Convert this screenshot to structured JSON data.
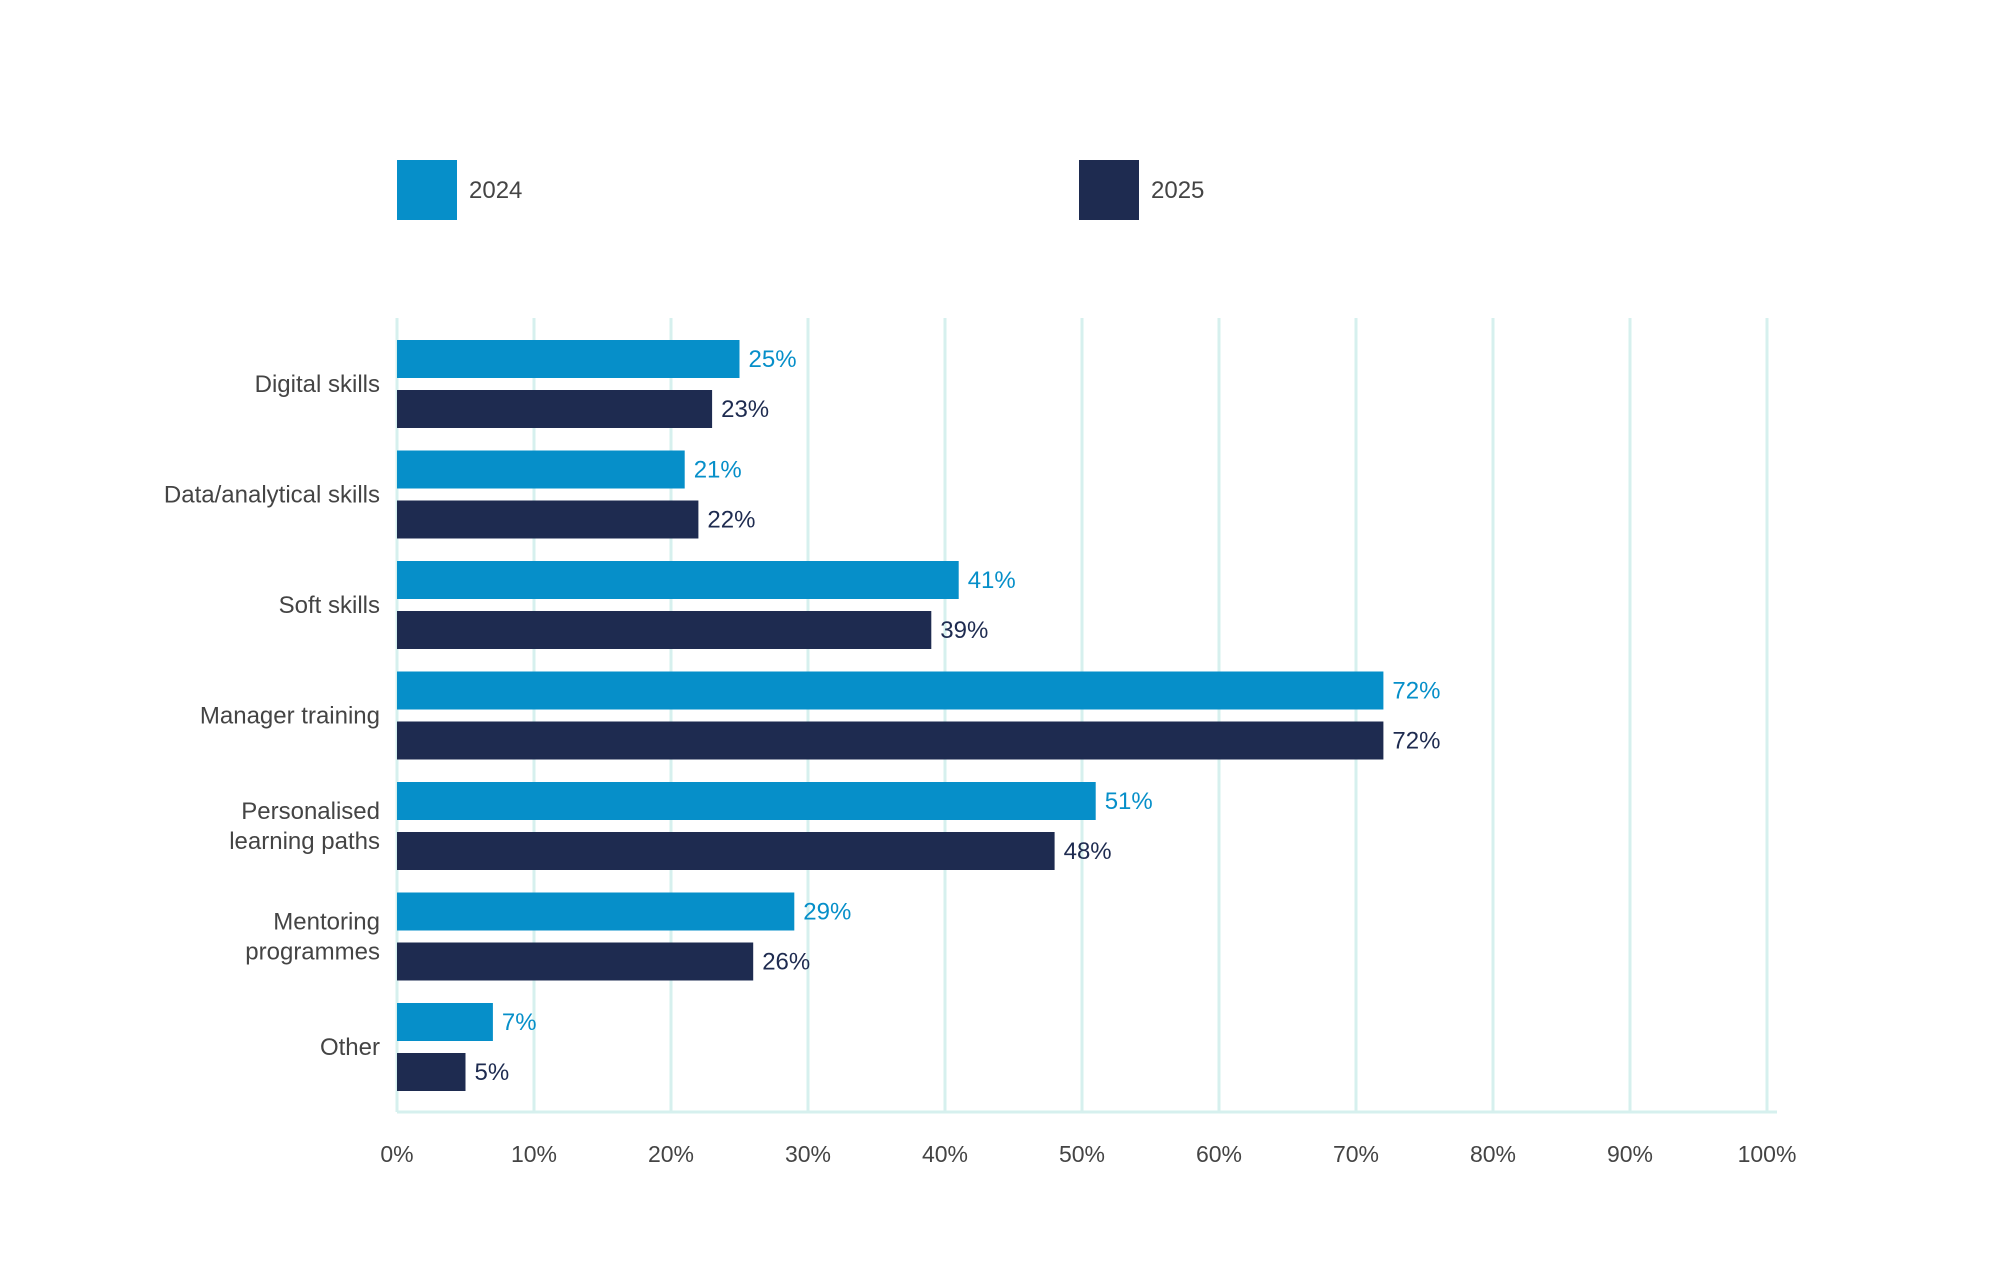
{
  "chart_data": {
    "type": "bar",
    "orientation": "horizontal",
    "categories": [
      [
        "Digital skills"
      ],
      [
        "Data/analytical skills"
      ],
      [
        "Soft skills"
      ],
      [
        "Manager training"
      ],
      [
        "Personalised",
        "learning paths"
      ],
      [
        "Mentoring",
        "programmes"
      ],
      [
        "Other"
      ]
    ],
    "series": [
      {
        "name": "2024",
        "color": "#068fc9",
        "values": [
          25,
          21,
          41,
          72,
          51,
          29,
          7
        ],
        "labels": [
          "25%",
          "21%",
          "41%",
          "72%",
          "51%",
          "29%",
          "7%"
        ]
      },
      {
        "name": "2025",
        "color": "#1e2b50",
        "values": [
          23,
          22,
          39,
          72,
          48,
          26,
          5
        ],
        "labels": [
          "23%",
          "22%",
          "39%",
          "72%",
          "48%",
          "26%",
          "5%"
        ]
      }
    ],
    "x_ticks": [
      0,
      10,
      20,
      30,
      40,
      50,
      60,
      70,
      80,
      90,
      100
    ],
    "x_tick_labels": [
      "0%",
      "10%",
      "20%",
      "30%",
      "40%",
      "50%",
      "60%",
      "70%",
      "80%",
      "90%",
      "100%"
    ],
    "xlim": [
      0,
      100
    ],
    "grid": true,
    "grid_color": "#d6f0ee",
    "legend_position": "top"
  }
}
